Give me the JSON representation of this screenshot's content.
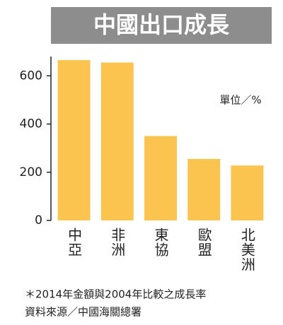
{
  "chart_data": {
    "type": "bar",
    "title": "中國出口成長",
    "unit_label": "單位／%",
    "notes": [
      "＊2014年金額與2004年比較之成長率",
      "資料來源／中國海關總署"
    ],
    "categories": [
      "中亞",
      "非洲",
      "東協",
      "歐盟",
      "北美洲"
    ],
    "values": [
      665,
      655,
      350,
      255,
      228
    ],
    "color": "#fbc44f",
    "ylim": [
      0,
      680
    ],
    "yticks": [
      0,
      200,
      400,
      600
    ],
    "grid": false
  }
}
